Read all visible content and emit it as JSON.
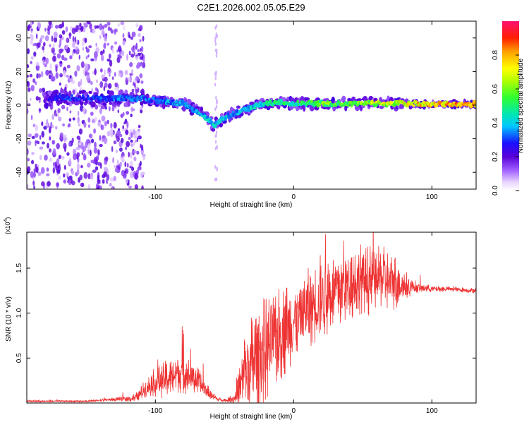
{
  "figure": {
    "title": "C2E1.2026.002.05.05.E29"
  },
  "chart_data": [
    {
      "type": "heatmap",
      "name": "spectrogram",
      "xlabel": "Height of straight line (km)",
      "ylabel": "Frequency (Hz)",
      "xlim": [
        -193,
        132
      ],
      "ylim": [
        -50,
        50
      ],
      "xticks": [
        -100,
        0,
        100
      ],
      "xtick_labels": [
        "-100",
        "0",
        "100"
      ],
      "yticks": [
        -40,
        -20,
        0,
        20,
        40
      ],
      "ytick_labels": [
        "-40",
        "-20",
        "0",
        "20",
        "40"
      ],
      "ridge": {
        "x": [
          -193,
          -170,
          -150,
          -120,
          -100,
          -80,
          -65,
          -58,
          -52,
          -40,
          -25,
          -10,
          0,
          20,
          50,
          80,
          100,
          132
        ],
        "freq": [
          0,
          5,
          4,
          4,
          3,
          1,
          -6,
          -12,
          -8,
          -4,
          0,
          2,
          1,
          1,
          1,
          1,
          0.5,
          0.5
        ],
        "amplitude": [
          0.1,
          0.3,
          0.3,
          0.35,
          0.35,
          0.4,
          0.4,
          0.45,
          0.4,
          0.4,
          0.45,
          0.55,
          0.5,
          0.6,
          0.65,
          0.75,
          0.8,
          0.85
        ]
      },
      "colorbar": {
        "label": "Normalized spectral amplitude",
        "range": [
          0,
          1
        ],
        "ticks": [
          0.0,
          0.2,
          0.4,
          0.6,
          0.8
        ],
        "tick_labels": [
          "0.0",
          "0.2",
          "0.4",
          "0.6",
          "0.8"
        ]
      }
    },
    {
      "type": "line",
      "name": "snr",
      "xlabel": "Height of straight line (km)",
      "ylabel": "SNR (10 * v/v)",
      "y_scale_label": "(x10",
      "y_scale_exp": "4",
      "y_scale_close": ")",
      "xlim": [
        -193,
        132
      ],
      "ylim": [
        0,
        1.9
      ],
      "xticks": [
        -100,
        0,
        100
      ],
      "xtick_labels": [
        "-100",
        "0",
        "100"
      ],
      "yticks": [
        0.5,
        1.0,
        1.5
      ],
      "ytick_labels": [
        "0.5",
        "1.0",
        "1.5"
      ],
      "color": "#ee3333",
      "series": [
        {
          "name": "SNR",
          "x": [
            -193,
            -150,
            -130,
            -115,
            -108,
            -102,
            -95,
            -88,
            -82,
            -75,
            -68,
            -62,
            -55,
            -48,
            -42,
            -38,
            -35,
            -30,
            -25,
            -20,
            -15,
            -10,
            -5,
            0,
            5,
            10,
            15,
            20,
            25,
            30,
            35,
            40,
            45,
            50,
            55,
            60,
            65,
            70,
            75,
            80,
            85,
            90,
            95,
            100,
            110,
            120,
            132
          ],
          "y": [
            0.02,
            0.02,
            0.04,
            0.05,
            0.15,
            0.22,
            0.25,
            0.3,
            0.35,
            0.3,
            0.22,
            0.12,
            0.04,
            0.03,
            0.06,
            0.2,
            0.35,
            0.45,
            0.55,
            0.6,
            0.7,
            0.75,
            0.85,
            0.9,
            1.0,
            1.05,
            1.1,
            1.15,
            1.2,
            1.25,
            1.3,
            1.35,
            1.35,
            1.4,
            1.35,
            1.4,
            1.4,
            1.35,
            1.35,
            1.3,
            1.3,
            1.28,
            1.28,
            1.27,
            1.27,
            1.26,
            1.25
          ],
          "noise": [
            0.01,
            0.01,
            0.02,
            0.04,
            0.1,
            0.15,
            0.2,
            0.22,
            0.25,
            0.2,
            0.15,
            0.08,
            0.02,
            0.02,
            0.08,
            0.35,
            0.5,
            0.55,
            0.6,
            0.6,
            0.55,
            0.55,
            0.5,
            0.45,
            0.45,
            0.45,
            0.45,
            0.45,
            0.45,
            0.45,
            0.45,
            0.45,
            0.4,
            0.4,
            0.4,
            0.35,
            0.35,
            0.35,
            0.3,
            0.2,
            0.1,
            0.06,
            0.05,
            0.04,
            0.03,
            0.03,
            0.03
          ]
        }
      ]
    }
  ]
}
